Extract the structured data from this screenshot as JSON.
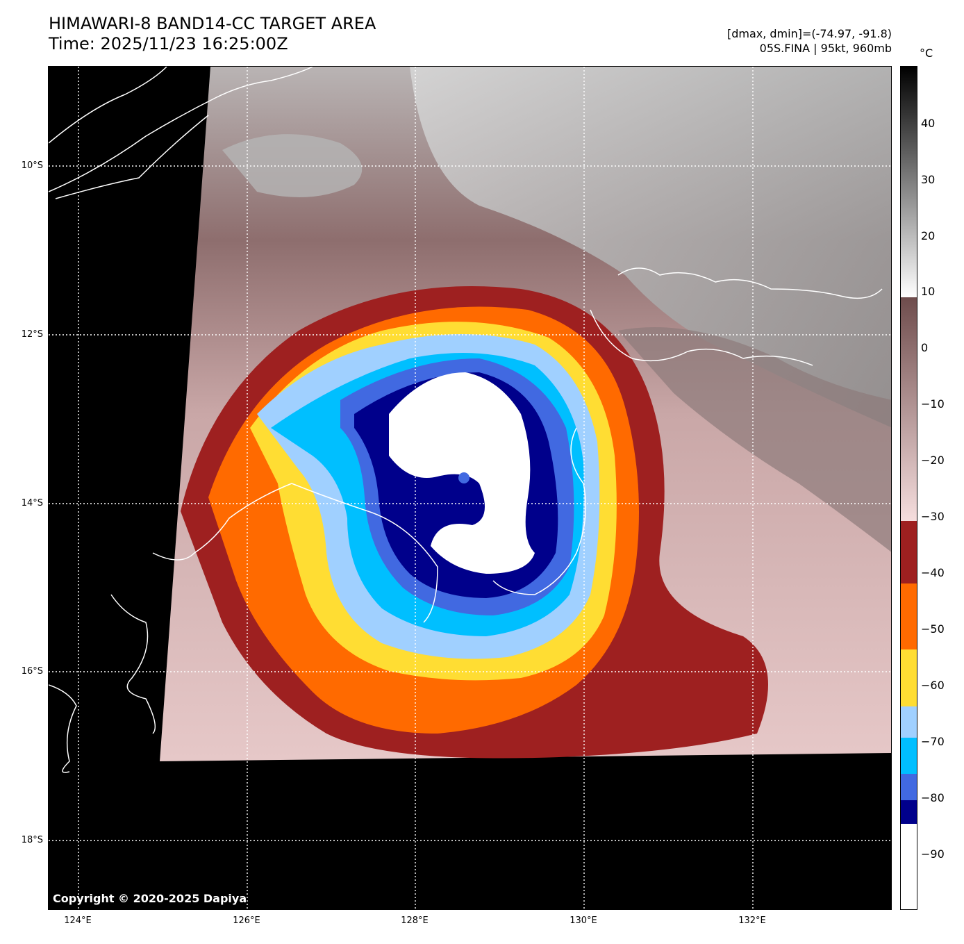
{
  "header": {
    "title_line1": "HIMAWARI-8 BAND14-CC TARGET AREA",
    "title_line2": "Time: 2025/11/23 16:25:00Z",
    "info_line1": "[dmax, dmin]=(-74.97, -91.8)",
    "info_line2": "05S.FINA | 95kt, 960mb"
  },
  "map": {
    "lat_labels": [
      "10°S",
      "12°S",
      "14°S",
      "16°S",
      "18°S"
    ],
    "lon_labels": [
      "124°E",
      "126°E",
      "128°E",
      "130°E",
      "132°E"
    ],
    "copyright": "Copyright © 2020-2025 Dapiya"
  },
  "colorbar": {
    "unit": "°C",
    "ticks": [
      "40",
      "30",
      "20",
      "10",
      "0",
      "−10",
      "−20",
      "−30",
      "−40",
      "−50",
      "−60",
      "−70",
      "−80",
      "−90"
    ],
    "colors": {
      "warm_dark": "#000000",
      "warm_grey": "#808080",
      "brown": "#7a5555",
      "pink": "#f2d6d6",
      "dark_red": "#9e2020",
      "orange": "#ff6a00",
      "yellow": "#ffdd33",
      "light_blue": "#a0d0ff",
      "cyan": "#00bfff",
      "blue": "#4169e1",
      "navy": "#00008b",
      "white": "#ffffff"
    }
  }
}
